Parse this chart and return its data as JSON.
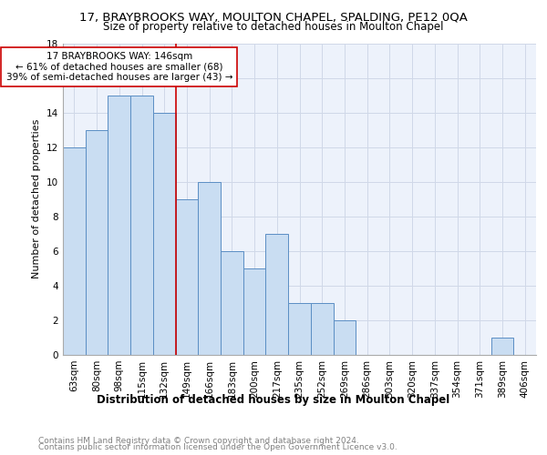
{
  "title1": "17, BRAYBROOKS WAY, MOULTON CHAPEL, SPALDING, PE12 0QA",
  "title2": "Size of property relative to detached houses in Moulton Chapel",
  "xlabel": "Distribution of detached houses by size in Moulton Chapel",
  "ylabel": "Number of detached properties",
  "categories": [
    "63sqm",
    "80sqm",
    "98sqm",
    "115sqm",
    "132sqm",
    "149sqm",
    "166sqm",
    "183sqm",
    "200sqm",
    "217sqm",
    "235sqm",
    "252sqm",
    "269sqm",
    "286sqm",
    "303sqm",
    "320sqm",
    "337sqm",
    "354sqm",
    "371sqm",
    "389sqm",
    "406sqm"
  ],
  "values": [
    12,
    13,
    15,
    15,
    14,
    9,
    10,
    6,
    5,
    7,
    3,
    3,
    2,
    0,
    0,
    0,
    0,
    0,
    0,
    1,
    0
  ],
  "bar_color": "#c9ddf2",
  "bar_edgecolor": "#5b8ec4",
  "marker_index": 5,
  "annotation_line1": "17 BRAYBROOKS WAY: 146sqm",
  "annotation_line2": "← 61% of detached houses are smaller (68)",
  "annotation_line3": "39% of semi-detached houses are larger (43) →",
  "annotation_box_color": "#ffffff",
  "annotation_box_edgecolor": "#cc0000",
  "vline_color": "#cc0000",
  "footer1": "Contains HM Land Registry data © Crown copyright and database right 2024.",
  "footer2": "Contains public sector information licensed under the Open Government Licence v3.0.",
  "footer_color": "#808080",
  "ylim": [
    0,
    18
  ],
  "yticks": [
    0,
    2,
    4,
    6,
    8,
    10,
    12,
    14,
    16,
    18
  ],
  "grid_color": "#d0d8e8",
  "bg_color": "#edf2fb",
  "title1_fontsize": 9.5,
  "title2_fontsize": 8.5,
  "xlabel_fontsize": 8.5,
  "ylabel_fontsize": 8,
  "tick_fontsize": 7.5,
  "annotation_fontsize": 7.5,
  "footer_fontsize": 6.5
}
